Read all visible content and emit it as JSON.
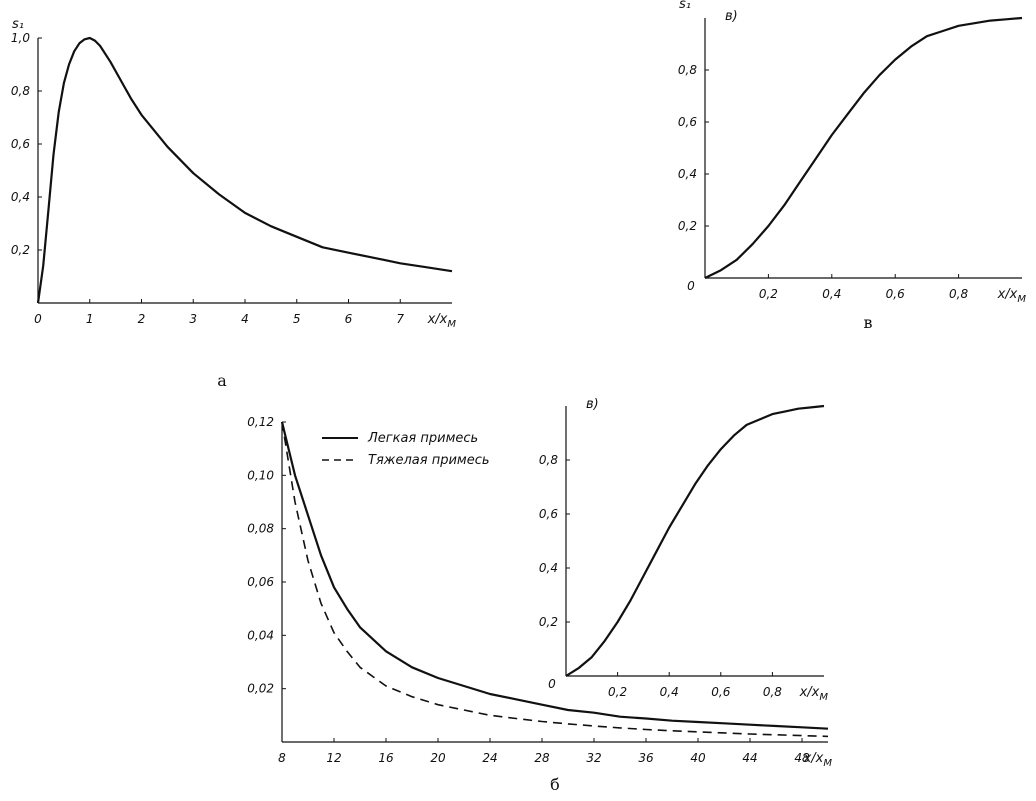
{
  "chart_data": [
    {
      "id": "a",
      "type": "line",
      "panel_label": "а",
      "ylabel": "s₁",
      "xlabel": "x/x",
      "xlabel_sub": "М",
      "xlim": [
        0,
        8
      ],
      "ylim": [
        0,
        1.0
      ],
      "x_ticks": [
        0,
        1,
        2,
        3,
        4,
        5,
        6,
        7
      ],
      "x_tick_labels": [
        "0",
        "1",
        "2",
        "3",
        "4",
        "5",
        "6",
        "7"
      ],
      "y_ticks": [
        0.2,
        0.4,
        0.6,
        0.8,
        1.0
      ],
      "y_tick_labels": [
        "0,2",
        "0,4",
        "0,6",
        "0,8",
        "1,0"
      ],
      "grid": false,
      "series": [
        {
          "style": "solid",
          "x": [
            0,
            0.1,
            0.2,
            0.3,
            0.4,
            0.5,
            0.6,
            0.7,
            0.8,
            0.9,
            1.0,
            1.1,
            1.2,
            1.4,
            1.6,
            1.8,
            2.0,
            2.5,
            3.0,
            3.5,
            4.0,
            4.5,
            5.0,
            5.5,
            6.0,
            6.5,
            7.0,
            7.5,
            8.0
          ],
          "y": [
            0,
            0.14,
            0.35,
            0.56,
            0.72,
            0.83,
            0.9,
            0.95,
            0.98,
            0.995,
            1.0,
            0.99,
            0.97,
            0.91,
            0.84,
            0.77,
            0.71,
            0.59,
            0.49,
            0.41,
            0.34,
            0.29,
            0.25,
            0.21,
            0.19,
            0.17,
            0.15,
            0.135,
            0.12
          ]
        }
      ]
    },
    {
      "id": "v",
      "type": "line",
      "panel_label": "в",
      "inner_label": "в)",
      "ylabel": "s₁",
      "xlabel": "x/x",
      "xlabel_sub": "М",
      "xlim": [
        0,
        1.0
      ],
      "ylim": [
        0,
        1.0
      ],
      "x_ticks": [
        0.2,
        0.4,
        0.6,
        0.8
      ],
      "x_tick_labels": [
        "0,2",
        "0,4",
        "0,6",
        "0,8"
      ],
      "y_ticks": [
        0.2,
        0.4,
        0.6,
        0.8
      ],
      "y_tick_labels": [
        "0,2",
        "0,4",
        "0,6",
        "0,8"
      ],
      "origin_label": "0",
      "grid": false,
      "series": [
        {
          "style": "solid",
          "x": [
            0,
            0.05,
            0.1,
            0.15,
            0.2,
            0.25,
            0.3,
            0.35,
            0.4,
            0.45,
            0.5,
            0.55,
            0.6,
            0.65,
            0.7,
            0.75,
            0.8,
            0.85,
            0.9,
            0.95,
            1.0
          ],
          "y": [
            0,
            0.03,
            0.07,
            0.13,
            0.2,
            0.28,
            0.37,
            0.46,
            0.55,
            0.63,
            0.71,
            0.78,
            0.84,
            0.89,
            0.93,
            0.95,
            0.97,
            0.98,
            0.99,
            0.995,
            1.0
          ]
        }
      ]
    },
    {
      "id": "b",
      "type": "line",
      "panel_label": "б",
      "xlabel": "x/x",
      "xlabel_sub": "М",
      "xlim": [
        8,
        50
      ],
      "ylim": [
        0,
        0.12
      ],
      "x_ticks": [
        8,
        12,
        16,
        20,
        24,
        28,
        32,
        36,
        40,
        44,
        48
      ],
      "x_tick_labels": [
        "8",
        "12",
        "16",
        "20",
        "24",
        "28",
        "32",
        "36",
        "40",
        "44",
        "48"
      ],
      "y_ticks": [
        0.02,
        0.04,
        0.06,
        0.08,
        0.1,
        0.12
      ],
      "y_tick_labels": [
        "0,02",
        "0,04",
        "0,06",
        "0,08",
        "0,10",
        "0,12"
      ],
      "grid": false,
      "legend": "top-left",
      "series": [
        {
          "name": "Легкая примесь",
          "style": "solid",
          "x": [
            8,
            9,
            10,
            11,
            12,
            13,
            14,
            16,
            18,
            20,
            22,
            24,
            26,
            28,
            30,
            32,
            34,
            36,
            38,
            40,
            42,
            44,
            46,
            48,
            50
          ],
          "y": [
            0.12,
            0.1,
            0.085,
            0.07,
            0.058,
            0.05,
            0.043,
            0.034,
            0.028,
            0.024,
            0.021,
            0.018,
            0.016,
            0.014,
            0.012,
            0.011,
            0.0095,
            0.0088,
            0.008,
            0.0075,
            0.007,
            0.0065,
            0.006,
            0.0055,
            0.005
          ]
        },
        {
          "name": "Тяжелая примесь",
          "style": "dashed",
          "x": [
            8,
            9,
            10,
            11,
            12,
            13,
            14,
            16,
            18,
            20,
            22,
            24,
            26,
            28,
            30,
            32,
            34,
            36,
            38,
            40,
            42,
            44,
            46,
            48,
            50
          ],
          "y": [
            0.12,
            0.09,
            0.068,
            0.052,
            0.041,
            0.034,
            0.028,
            0.021,
            0.017,
            0.014,
            0.012,
            0.01,
            0.0088,
            0.0077,
            0.0068,
            0.006,
            0.0053,
            0.0047,
            0.0042,
            0.0038,
            0.0034,
            0.003,
            0.0027,
            0.0024,
            0.0021
          ]
        }
      ]
    },
    {
      "id": "b-inset",
      "type": "line",
      "inner_label": "в)",
      "xlabel": "x/x",
      "xlabel_sub": "М",
      "xlim": [
        0,
        1.0
      ],
      "ylim": [
        0,
        1.0
      ],
      "x_ticks": [
        0.2,
        0.4,
        0.6,
        0.8
      ],
      "x_tick_labels": [
        "0,2",
        "0,4",
        "0,6",
        "0,8"
      ],
      "y_ticks": [
        0.2,
        0.4,
        0.6,
        0.8
      ],
      "y_tick_labels": [
        "0,2",
        "0,4",
        "0,6",
        "0,8"
      ],
      "origin_label": "0",
      "grid": false,
      "series": [
        {
          "style": "solid",
          "x": [
            0,
            0.05,
            0.1,
            0.15,
            0.2,
            0.25,
            0.3,
            0.35,
            0.4,
            0.45,
            0.5,
            0.55,
            0.6,
            0.65,
            0.7,
            0.75,
            0.8,
            0.85,
            0.9,
            0.95,
            1.0
          ],
          "y": [
            0,
            0.03,
            0.07,
            0.13,
            0.2,
            0.28,
            0.37,
            0.46,
            0.55,
            0.63,
            0.71,
            0.78,
            0.84,
            0.89,
            0.93,
            0.95,
            0.97,
            0.98,
            0.99,
            0.995,
            1.0
          ]
        }
      ]
    }
  ]
}
